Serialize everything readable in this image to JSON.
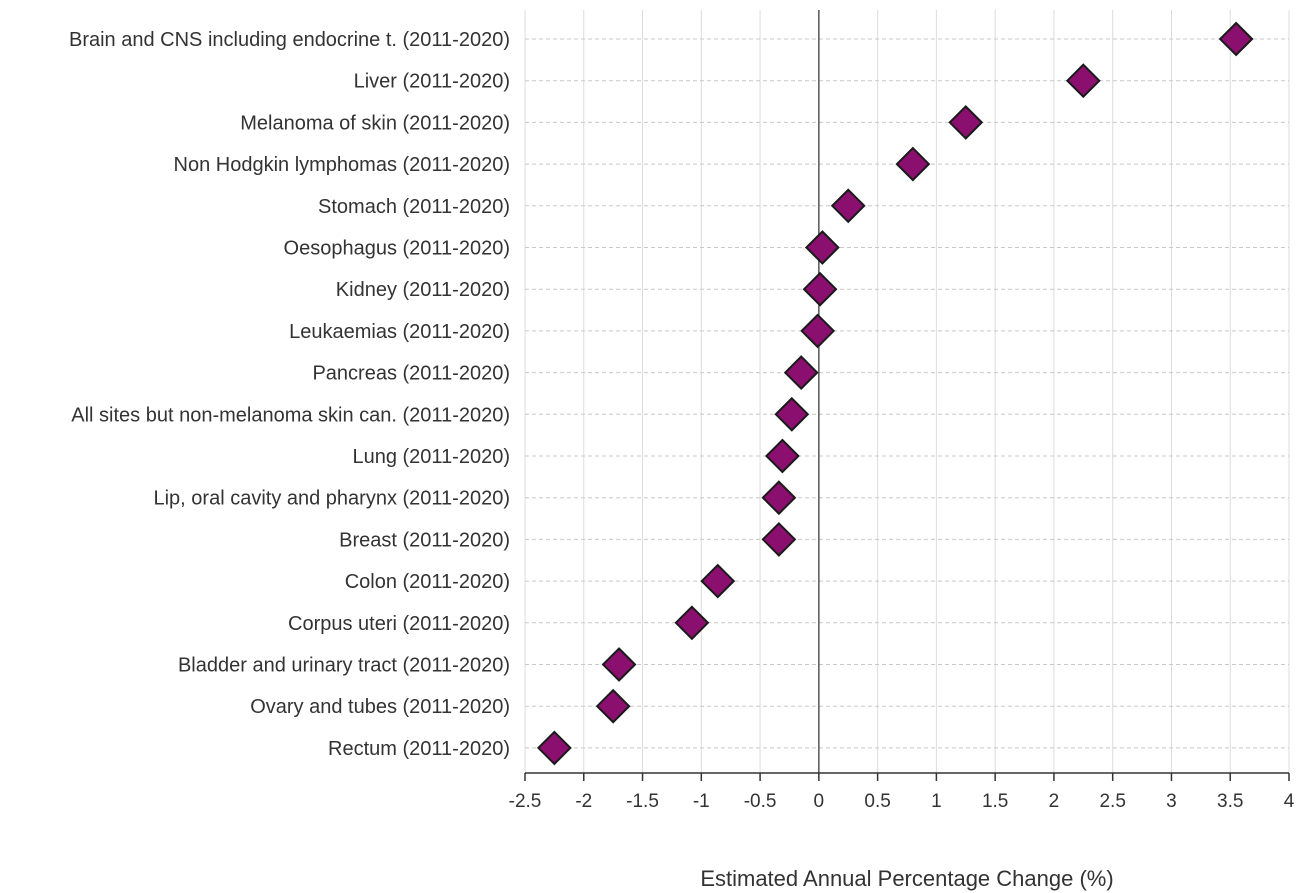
{
  "chart_data": {
    "type": "scatter",
    "orientation": "horizontal",
    "marker": "diamond",
    "marker_color": "#8b0f6e",
    "marker_outline": "#1a1a1a",
    "categories": [
      "Brain and CNS including endocrine t. (2011-2020)",
      "Liver (2011-2020)",
      "Melanoma of skin (2011-2020)",
      "Non Hodgkin lymphomas (2011-2020)",
      "Stomach (2011-2020)",
      "Oesophagus (2011-2020)",
      "Kidney (2011-2020)",
      "Leukaemias (2011-2020)",
      "Pancreas (2011-2020)",
      "All sites but non-melanoma skin can. (2011-2020)",
      "Lung (2011-2020)",
      "Lip, oral cavity and pharynx (2011-2020)",
      "Breast (2011-2020)",
      "Colon (2011-2020)",
      "Corpus uteri (2011-2020)",
      "Bladder and urinary tract (2011-2020)",
      "Ovary and tubes (2011-2020)",
      "Rectum (2011-2020)"
    ],
    "values": [
      3.55,
      2.25,
      1.25,
      0.8,
      0.25,
      0.03,
      0.01,
      -0.01,
      -0.15,
      -0.23,
      -0.31,
      -0.34,
      -0.34,
      -0.86,
      -1.08,
      -1.7,
      -1.75,
      -2.25
    ],
    "xlabel": "Estimated Annual Percentage Change (%)",
    "xlim": [
      -2.5,
      4
    ],
    "xticks": [
      -2.5,
      -2,
      -1.5,
      -1,
      -0.5,
      0,
      0.5,
      1,
      1.5,
      2,
      2.5,
      3,
      3.5,
      4
    ],
    "xtick_labels": [
      "-2.5",
      "-2",
      "-1.5",
      "-1",
      "-0.5",
      "0",
      "0.5",
      "1",
      "1.5",
      "2",
      "2.5",
      "3",
      "3.5",
      "4"
    ],
    "vertical_grid": true,
    "horizontal_grid": "dashed",
    "zero_line": true
  }
}
